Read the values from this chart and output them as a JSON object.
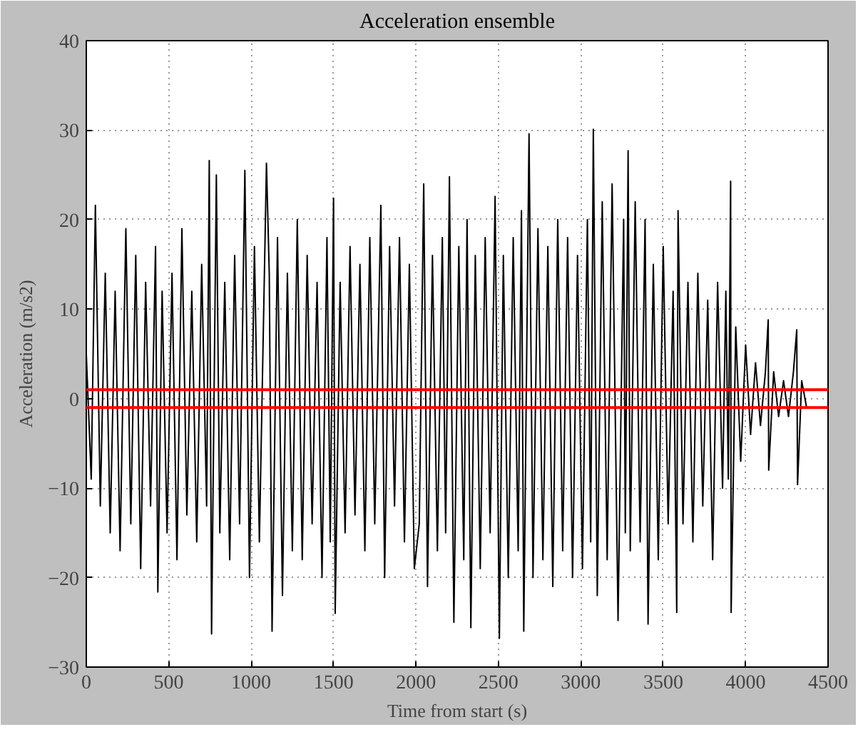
{
  "chart_data": {
    "type": "line",
    "title": "Acceleration ensemble",
    "xlabel": "Time from start (s)",
    "ylabel": "Acceleration (m/s2)",
    "xlim": [
      0,
      4500
    ],
    "xticks": [
      0,
      500,
      1000,
      1500,
      2000,
      2500,
      3000,
      3500,
      4000,
      4500
    ],
    "ylim": [
      -30,
      40
    ],
    "yticks": [
      -30,
      -20,
      -10,
      0,
      10,
      20,
      30,
      40
    ],
    "grid": true,
    "line_style": "solid",
    "ref_lines": [
      {
        "axis": "y",
        "value": 1,
        "color": "#ff0000"
      },
      {
        "axis": "y",
        "value": -1,
        "color": "#ff0000"
      }
    ],
    "series": [
      {
        "color": "#000000",
        "x": [
          0,
          30,
          55,
          85,
          115,
          145,
          175,
          205,
          240,
          270,
          300,
          330,
          360,
          390,
          420,
          434,
          460,
          490,
          520,
          550,
          580,
          610,
          640,
          670,
          700,
          730,
          746,
          760,
          789,
          810,
          840,
          870,
          900,
          930,
          962,
          990,
          1020,
          1050,
          1093,
          1110,
          1127,
          1160,
          1190,
          1220,
          1250,
          1280,
          1310,
          1340,
          1370,
          1400,
          1430,
          1460,
          1480,
          1500,
          1510,
          1540,
          1570,
          1600,
          1630,
          1660,
          1690,
          1720,
          1750,
          1787,
          1810,
          1840,
          1870,
          1900,
          1930,
          1960,
          1990,
          2020,
          2047,
          2070,
          2100,
          2130,
          2160,
          2180,
          2203,
          2230,
          2260,
          2290,
          2310,
          2333,
          2360,
          2390,
          2420,
          2450,
          2480,
          2506,
          2530,
          2560,
          2590,
          2620,
          2640,
          2654,
          2686,
          2710,
          2740,
          2770,
          2800,
          2830,
          2860,
          2890,
          2920,
          2950,
          2980,
          3010,
          3040,
          3060,
          3076,
          3100,
          3130,
          3160,
          3190,
          3226,
          3260,
          3270,
          3287,
          3300,
          3330,
          3360,
          3390,
          3408,
          3440,
          3470,
          3500,
          3530,
          3560,
          3582,
          3590,
          3620,
          3650,
          3680,
          3710,
          3740,
          3770,
          3800,
          3830,
          3860,
          3880,
          3895,
          3909,
          3912,
          3940,
          3970,
          4000,
          4030,
          4060,
          4090,
          4120,
          4137,
          4140,
          4170,
          4200,
          4230,
          4260,
          4290,
          4310,
          4315,
          4340,
          4370
        ],
        "values": [
          5,
          -9,
          21.6,
          -12,
          14,
          -15,
          12,
          -17,
          19,
          -14,
          16,
          -19,
          13,
          -12,
          17,
          -21.6,
          12,
          -15,
          14,
          -18,
          19,
          -13,
          12,
          -16,
          15,
          -12,
          26.6,
          -26.3,
          25,
          -15,
          13,
          -18,
          16,
          -14,
          25.5,
          -20,
          17,
          -16,
          26.3,
          14,
          -26,
          18,
          -22,
          14,
          -17,
          20,
          -18,
          16,
          -14,
          13,
          -20,
          18,
          -16,
          22.4,
          -24,
          13,
          -15,
          17,
          -13,
          15,
          -17,
          18,
          -14,
          21.6,
          -20,
          17,
          -12,
          18,
          -16,
          15,
          -19,
          -14,
          24,
          -21,
          16,
          -17,
          18,
          -15,
          24.8,
          -25,
          17,
          -18,
          20,
          -25.6,
          16,
          -19,
          18,
          -15,
          22.6,
          -26.8,
          16,
          -20,
          18,
          -17,
          21,
          -26,
          29.6,
          -20,
          19,
          -18,
          17,
          -21,
          20,
          -17,
          18,
          -20,
          16,
          -19,
          20,
          -16,
          30.1,
          -22,
          22,
          -18,
          24,
          -24.8,
          20,
          -15,
          27.7,
          -17,
          22,
          -16,
          20,
          -25.2,
          15,
          -18,
          17,
          -14,
          12,
          -23.9,
          21,
          -14,
          13,
          -16,
          14,
          -12,
          11,
          -18,
          13,
          -10,
          12,
          -9,
          24.3,
          -23.9,
          8,
          -7,
          6,
          -4,
          4,
          -3,
          3,
          8.8,
          -8,
          3,
          -2,
          2,
          -2,
          3,
          7.7,
          -9.6,
          2,
          -1
        ]
      }
    ]
  }
}
